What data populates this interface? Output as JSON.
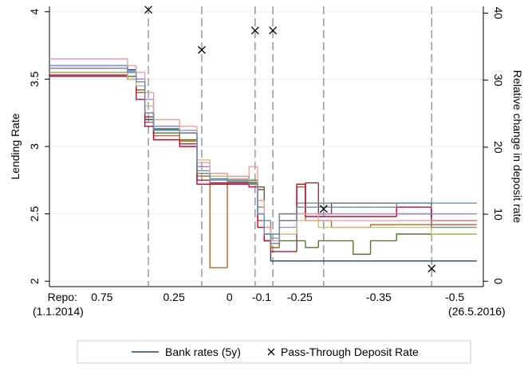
{
  "chart_data": {
    "type": "line",
    "y_title": "Lending Rate",
    "y2_title": "Relative change in deposit rate",
    "xlim": [
      0,
      100
    ],
    "xticks": [
      {
        "value": 3,
        "label": "Repo:"
      },
      {
        "value": 12.1,
        "label": "0.75"
      },
      {
        "value": 28.7,
        "label": "0.25"
      },
      {
        "value": 41.5,
        "label": "0"
      },
      {
        "value": 48.9,
        "label": "-0.1"
      },
      {
        "value": 57.7,
        "label": "-0.25"
      },
      {
        "value": 75.9,
        "label": "-0.35"
      },
      {
        "value": 93.4,
        "label": "-0.5"
      }
    ],
    "date_labels": [
      {
        "value": 2,
        "label": "(1.1.2014)"
      },
      {
        "value": 98.5,
        "label": "(26.5.2016)"
      }
    ],
    "event_lines": [
      22.8,
      35.1,
      47.4,
      51.5,
      63.2,
      88.1
    ],
    "ylim": [
      1.96,
      4.04
    ],
    "yticks": [
      2,
      2.5,
      3,
      3.5,
      4
    ],
    "y2lim": [
      -0.8,
      41
    ],
    "y2ticks": [
      0,
      10,
      20,
      30,
      40
    ],
    "grid": true,
    "legend": "bottom",
    "x": [
      0,
      18,
      20,
      22,
      24,
      30,
      34,
      37,
      41,
      46,
      48,
      49.5,
      51,
      53,
      57,
      59,
      62,
      65,
      70,
      74,
      80,
      88,
      98.5
    ],
    "series": [
      {
        "name": "Bank rates (5y)",
        "color": "#1a476f",
        "values": [
          3.6,
          3.57,
          3.45,
          3.2,
          3.13,
          3.1,
          2.8,
          2.78,
          2.76,
          2.75,
          2.7,
          2.3,
          2.15,
          2.15,
          2.15,
          2.15,
          2.15,
          2.15,
          2.15,
          2.15,
          2.15,
          2.15,
          2.15
        ]
      },
      {
        "color": "#90353b",
        "values": [
          3.52,
          3.5,
          3.4,
          3.22,
          3.05,
          3.02,
          2.75,
          2.73,
          2.73,
          2.72,
          2.68,
          2.4,
          2.22,
          2.22,
          2.5,
          2.73,
          2.5,
          2.58,
          2.58,
          2.58,
          2.5,
          2.45,
          2.45
        ]
      },
      {
        "color": "#55752f",
        "values": [
          3.55,
          3.52,
          3.42,
          3.25,
          3.1,
          3.05,
          2.8,
          2.76,
          2.75,
          2.73,
          2.7,
          2.35,
          2.25,
          2.3,
          2.3,
          2.25,
          2.3,
          2.3,
          2.2,
          2.3,
          2.35,
          2.35,
          2.35
        ]
      },
      {
        "color": "#b5651d",
        "values": [
          3.55,
          3.5,
          3.4,
          3.18,
          3.08,
          3.04,
          2.78,
          2.1,
          2.74,
          2.72,
          2.45,
          2.3,
          2.25,
          2.5,
          2.7,
          2.45,
          2.45,
          2.4,
          2.4,
          2.42,
          2.42,
          2.42,
          2.42
        ]
      },
      {
        "color": "#6e8e84",
        "values": [
          3.58,
          3.55,
          3.45,
          3.3,
          3.15,
          3.1,
          2.82,
          2.8,
          2.78,
          2.75,
          2.55,
          2.45,
          2.35,
          2.5,
          2.58,
          2.58,
          2.58,
          2.58,
          2.58,
          2.58,
          2.58,
          2.4,
          2.4
        ]
      },
      {
        "color": "#c10534",
        "values": [
          3.53,
          3.5,
          3.35,
          3.15,
          3.05,
          3.0,
          2.72,
          2.72,
          2.72,
          2.7,
          2.4,
          2.3,
          2.28,
          2.45,
          2.72,
          2.48,
          2.48,
          2.48,
          2.48,
          2.48,
          2.55,
          2.45,
          2.45
        ]
      },
      {
        "color": "#938dd2",
        "values": [
          3.6,
          3.56,
          3.5,
          3.35,
          3.15,
          3.12,
          2.85,
          2.75,
          2.75,
          2.74,
          2.5,
          2.4,
          2.32,
          2.4,
          2.5,
          2.5,
          2.5,
          2.5,
          2.5,
          2.5,
          2.5,
          2.5,
          2.5
        ]
      },
      {
        "color": "#cac27e",
        "values": [
          3.55,
          3.5,
          3.45,
          3.3,
          3.2,
          3.1,
          2.9,
          2.78,
          2.76,
          2.74,
          2.6,
          2.35,
          2.3,
          2.35,
          2.45,
          2.45,
          2.4,
          2.4,
          2.4,
          2.4,
          2.4,
          2.35,
          2.35
        ]
      },
      {
        "color": "#e8a0a0",
        "values": [
          3.65,
          3.6,
          3.55,
          3.4,
          3.2,
          3.15,
          2.88,
          2.8,
          2.78,
          2.85,
          2.6,
          2.4,
          2.3,
          2.45,
          2.5,
          2.5,
          2.45,
          2.45,
          2.45,
          2.45,
          2.45,
          2.45,
          2.45
        ]
      },
      {
        "color": "#6a8caf",
        "values": [
          3.58,
          3.55,
          3.48,
          3.25,
          3.12,
          3.1,
          2.8,
          2.76,
          2.74,
          2.72,
          2.5,
          2.35,
          2.28,
          2.45,
          2.55,
          2.55,
          2.55,
          2.55,
          2.55,
          2.55,
          2.58,
          2.58,
          2.58
        ]
      }
    ],
    "scatter": {
      "name": "Pass-Through Deposit Rate",
      "axis": "y2",
      "color": "#000000",
      "x": [
        22.8,
        35.1,
        47.4,
        51.5,
        63.2,
        88.1
      ],
      "values": [
        40.5,
        34.5,
        37.4,
        37.4,
        10.8,
        1.9
      ]
    }
  }
}
